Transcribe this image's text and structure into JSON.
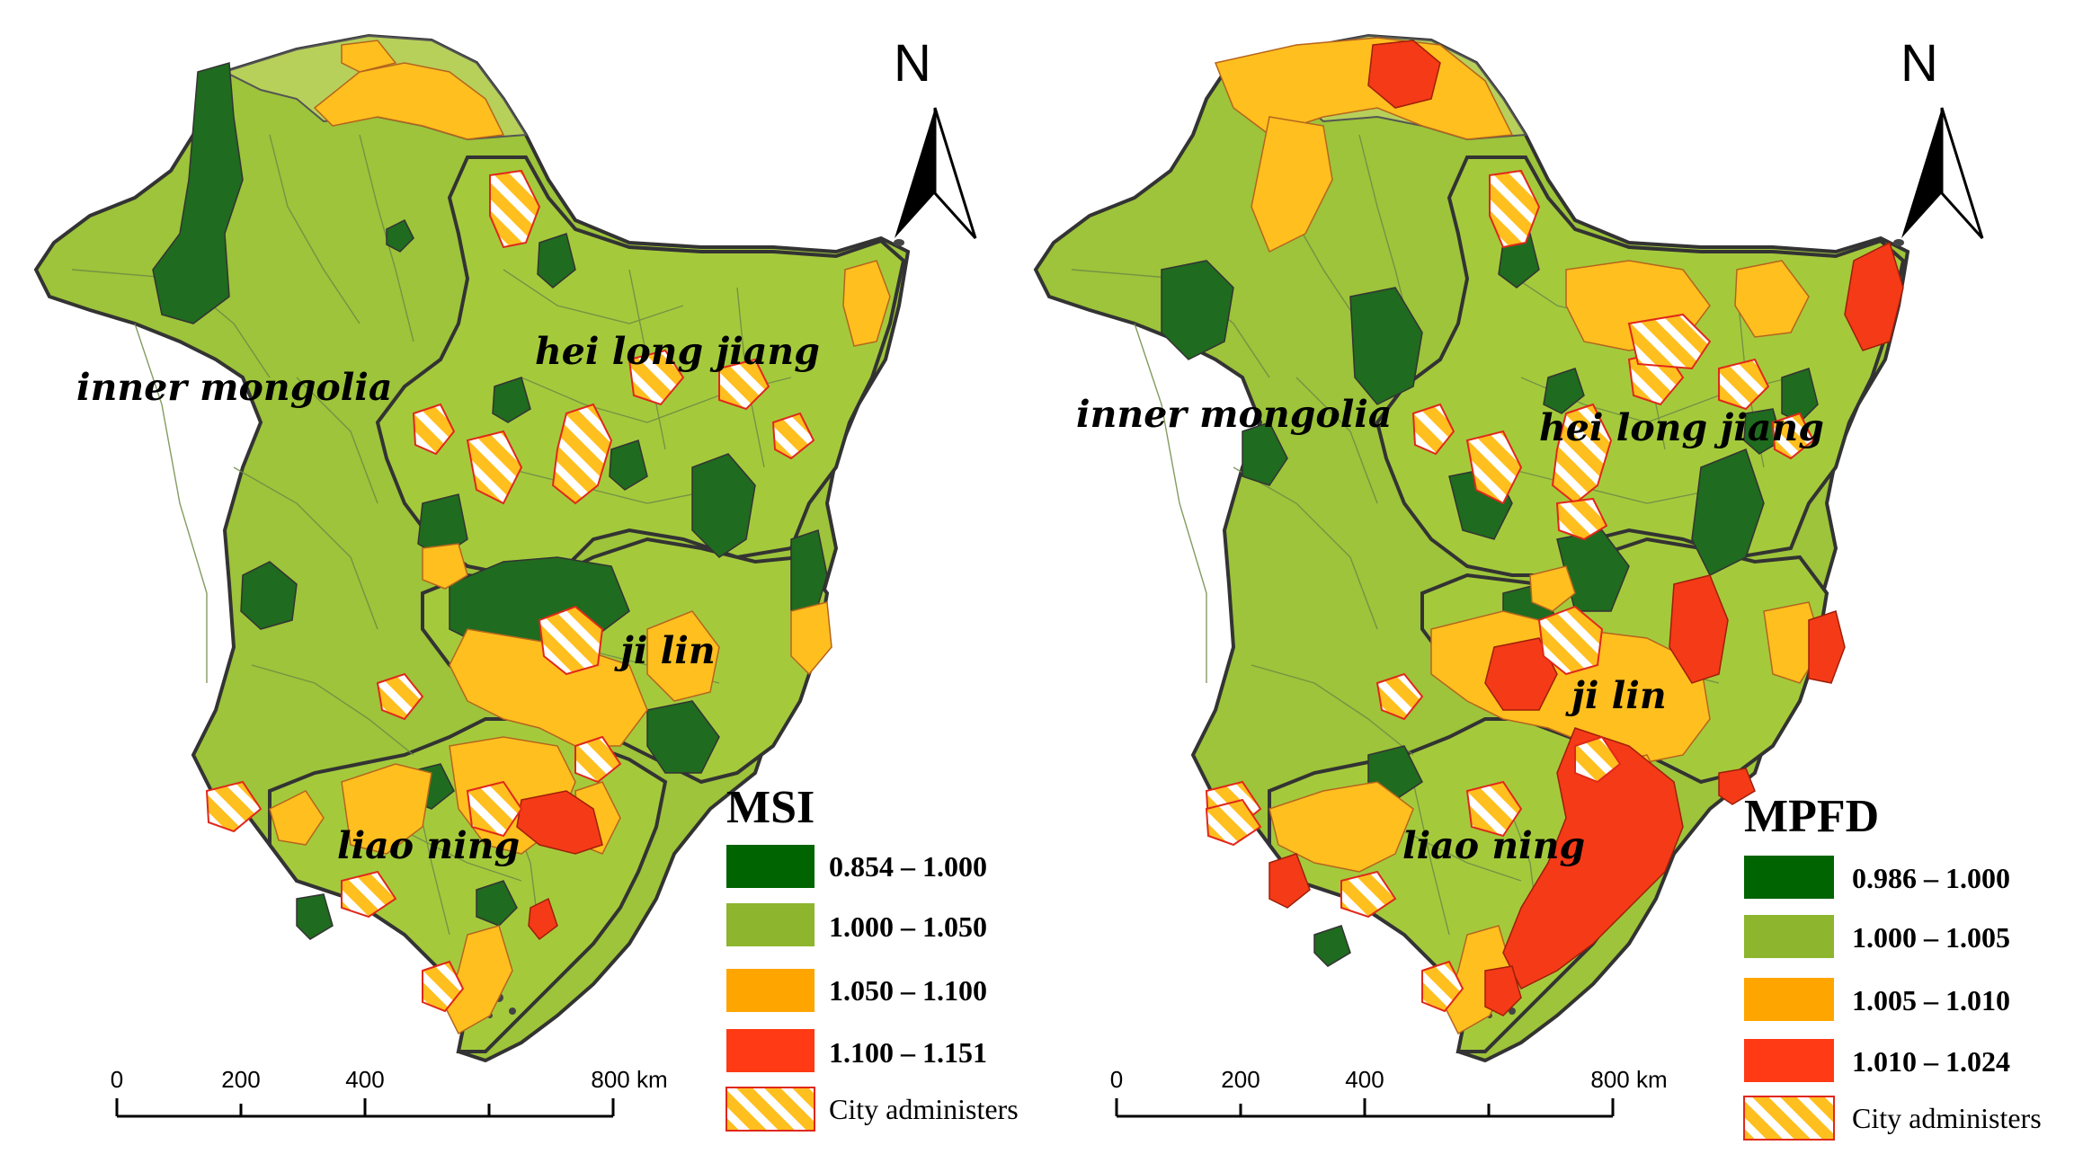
{
  "maps": [
    {
      "index_name": "MSI",
      "north_label": "N",
      "regions": [
        "inner mongolia",
        "hei long jiang",
        "ji lin",
        "liao ning"
      ],
      "legend": [
        {
          "range": "0.854 – 1.000",
          "color": "#006400"
        },
        {
          "range": "1.000 – 1.050",
          "color": "#8DB52E"
        },
        {
          "range": "1.050 – 1.100",
          "color": "#FFA500"
        },
        {
          "range": "1.100 – 1.151",
          "color": "#FF3A14"
        }
      ],
      "city_label": "City administers",
      "scale": {
        "ticks": [
          "0",
          "200",
          "400",
          "800 km"
        ]
      }
    },
    {
      "index_name": "MPFD",
      "north_label": "N",
      "regions": [
        "inner mongolia",
        "hei long jiang",
        "ji lin",
        "liao ning"
      ],
      "legend": [
        {
          "range": "0.986 – 1.000",
          "color": "#006400"
        },
        {
          "range": "1.000 – 1.005",
          "color": "#8DB52E"
        },
        {
          "range": "1.005 – 1.010",
          "color": "#FFA500"
        },
        {
          "range": "1.010 – 1.024",
          "color": "#FF3A14"
        }
      ],
      "city_label": "City administers",
      "scale": {
        "ticks": [
          "0",
          "200",
          "400",
          "800 km"
        ]
      }
    }
  ],
  "colors": {
    "base_green": "#9DC43A",
    "dark_green": "#1F6B1F",
    "orange": "#FFBF1F",
    "red": "#F53A17",
    "boundary": "#333333",
    "county_line": "#6E8A45"
  }
}
